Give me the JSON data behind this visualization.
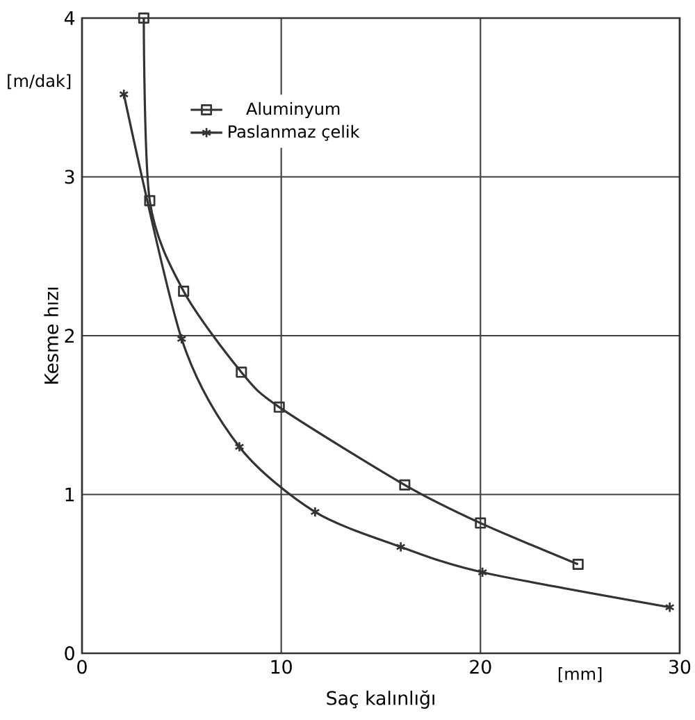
{
  "chart_data": {
    "type": "line",
    "xlabel": "Saç kalınlığı",
    "ylabel": "Kesme hızı",
    "annotations": [
      "[m/dak]",
      "[mm]"
    ],
    "series": [
      {
        "name": "Aluminyum",
        "color": "#333333",
        "marker": "square",
        "x": [
          3.1,
          3.4,
          5.1,
          8.0,
          9.9,
          16.2,
          20.0,
          24.9
        ],
        "values": [
          4.0,
          2.85,
          2.28,
          1.77,
          1.55,
          1.06,
          0.82,
          0.56
        ]
      },
      {
        "name": "Paslanmaz çelik",
        "color": "#333333",
        "marker": "cross",
        "x": [
          2.1,
          5.0,
          7.9,
          11.7,
          16.0,
          20.1,
          29.5
        ],
        "values": [
          3.52,
          1.98,
          1.3,
          0.89,
          0.67,
          0.51,
          0.29
        ]
      }
    ],
    "xlim": [
      0,
      30
    ],
    "ylim": [
      0,
      4
    ],
    "xticks": [
      0,
      10,
      20,
      30
    ],
    "yticks": [
      0,
      1,
      2,
      3,
      4
    ],
    "grid": true,
    "legend": "top left"
  }
}
